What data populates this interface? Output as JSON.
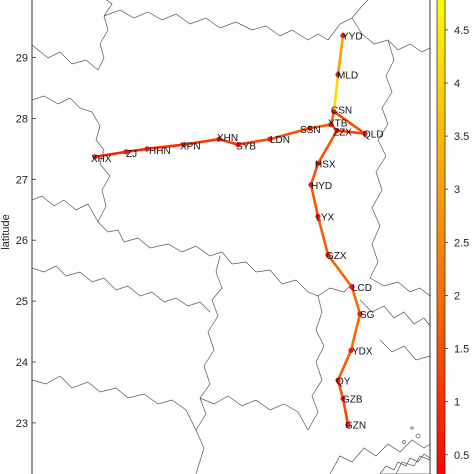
{
  "chart_data": {
    "type": "map",
    "ylabel": "latitude",
    "ylim": [
      22.5,
      30.0
    ],
    "y_ticks": [
      23,
      24,
      25,
      26,
      27,
      28,
      29
    ],
    "colorbar": {
      "ticks": [
        0.5,
        1,
        1.5,
        2,
        2.5,
        3,
        3.5,
        4,
        4.5
      ],
      "range": [
        0.3,
        4.8
      ],
      "colors": [
        "#ff0000",
        "#ff6600",
        "#ffbb00",
        "#ffff00"
      ]
    },
    "stations": [
      {
        "name": "XHX",
        "lat": 27.37
      },
      {
        "name": "ZJ",
        "lat": 27.45
      },
      {
        "name": "HHN",
        "lat": 27.5
      },
      {
        "name": "XPN",
        "lat": 27.57
      },
      {
        "name": "XHN",
        "lat": 27.66
      },
      {
        "name": "SYB",
        "lat": 27.57
      },
      {
        "name": "LDN",
        "lat": 27.66
      },
      {
        "name": "SSN",
        "lat": 27.84
      },
      {
        "name": "XTB",
        "lat": 27.9
      },
      {
        "name": "ZZX",
        "lat": 27.8
      },
      {
        "name": "CSN",
        "lat": 28.11
      },
      {
        "name": "QLD",
        "lat": 27.75
      },
      {
        "name": "MLD",
        "lat": 28.72
      },
      {
        "name": "YYD",
        "lat": 29.36
      },
      {
        "name": "HSX",
        "lat": 27.26
      },
      {
        "name": "HYD",
        "lat": 26.91
      },
      {
        "name": "LYX",
        "lat": 26.39
      },
      {
        "name": "GZX",
        "lat": 25.76
      },
      {
        "name": "LCD",
        "lat": 25.23
      },
      {
        "name": "SG",
        "lat": 24.79
      },
      {
        "name": "YDX",
        "lat": 24.19
      },
      {
        "name": "QY",
        "lat": 23.7
      },
      {
        "name": "GZB",
        "lat": 23.4
      },
      {
        "name": "GZN",
        "lat": 22.97
      }
    ],
    "segments": [
      {
        "from": "XHX",
        "to": "ZJ",
        "value": 0.8
      },
      {
        "from": "ZJ",
        "to": "HHN",
        "value": 0.9
      },
      {
        "from": "HHN",
        "to": "XPN",
        "value": 1.0
      },
      {
        "from": "XPN",
        "to": "XHN",
        "value": 1.1
      },
      {
        "from": "XHN",
        "to": "SYB",
        "value": 1.2
      },
      {
        "from": "SYB",
        "to": "LDN",
        "value": 1.4
      },
      {
        "from": "LDN",
        "to": "SSN",
        "value": 1.5
      },
      {
        "from": "SSN",
        "to": "XTB",
        "value": 1.6
      },
      {
        "from": "XTB",
        "to": "CSN",
        "value": 1.9
      },
      {
        "from": "XTB",
        "to": "ZZX",
        "value": 1.5
      },
      {
        "from": "ZZX",
        "to": "QLD",
        "value": 1.2
      },
      {
        "from": "CSN",
        "to": "QLD",
        "value": 1.4
      },
      {
        "from": "CSN",
        "to": "MLD",
        "value": 4.1
      },
      {
        "from": "MLD",
        "to": "YYD",
        "value": 3.0
      },
      {
        "from": "ZZX",
        "to": "HSX",
        "value": 1.6
      },
      {
        "from": "HSX",
        "to": "HYD",
        "value": 1.5
      },
      {
        "from": "HYD",
        "to": "LYX",
        "value": 1.6
      },
      {
        "from": "LYX",
        "to": "GZX",
        "value": 1.7
      },
      {
        "from": "GZX",
        "to": "LCD",
        "value": 1.8
      },
      {
        "from": "LCD",
        "to": "SG",
        "value": 1.9
      },
      {
        "from": "SG",
        "to": "YDX",
        "value": 1.9
      },
      {
        "from": "YDX",
        "to": "QY",
        "value": 1.7
      },
      {
        "from": "QY",
        "to": "GZB",
        "value": 1.5
      },
      {
        "from": "GZB",
        "to": "GZN",
        "value": 1.4
      }
    ]
  }
}
